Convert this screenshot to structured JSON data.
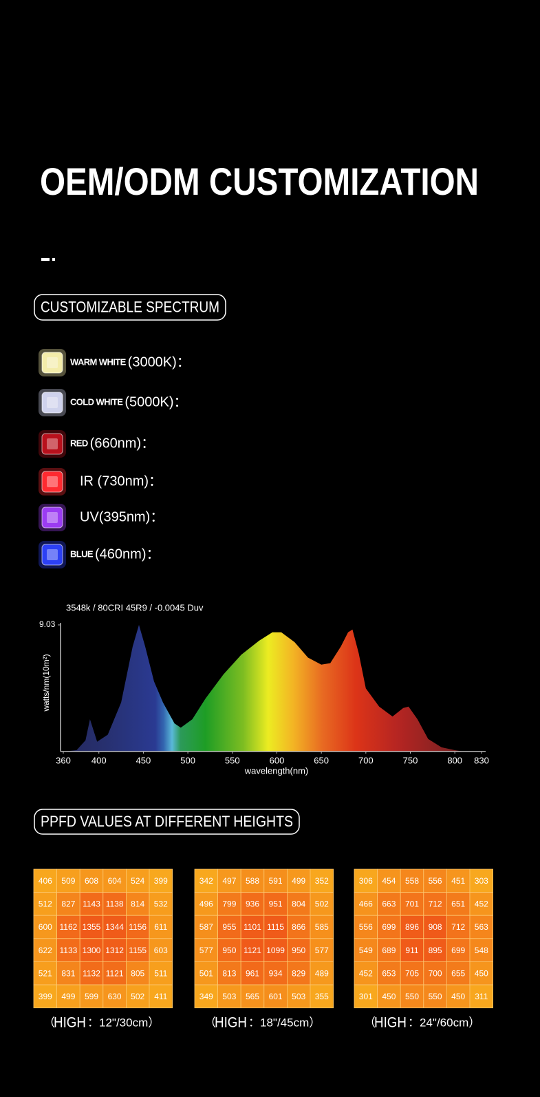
{
  "header": {
    "title": "OEM/ODM CUSTOMIZATION"
  },
  "spectrum_section": {
    "heading": "CUSTOMIZABLE SPECTRUM",
    "items": [
      {
        "name": "WARM WHITE",
        "spec": "(3000K)：",
        "color": "#f3ecaa"
      },
      {
        "name": "COLD WHITE",
        "spec": "(5000K)：",
        "color": "#cfd2ec"
      },
      {
        "name": "RED",
        "spec": "(660nm)：",
        "color": "#b8101c"
      },
      {
        "spec": "IR (730nm)：",
        "color": "#ff2a30"
      },
      {
        "spec": "UV(395nm)：",
        "color": "#9b3cf2"
      },
      {
        "name": "BLUE",
        "spec": "(460nm)：",
        "color": "#2c40f4"
      }
    ]
  },
  "spectrum_chart": {
    "type": "area",
    "title": "3548k / 80CRI 45R9 / -0.0045 Duv",
    "y_label": "watts/nm(10m²)",
    "x_label": "wavelength(nm)",
    "x": [
      360,
      375,
      385,
      390,
      398,
      410,
      425,
      438,
      445,
      452,
      462,
      472,
      485,
      492,
      505,
      520,
      540,
      560,
      580,
      595,
      605,
      620,
      635,
      650,
      660,
      672,
      680,
      685,
      692,
      700,
      715,
      730,
      742,
      748,
      758,
      770,
      785,
      800,
      810
    ],
    "y": [
      0,
      0.1,
      0.8,
      2.3,
      0.7,
      1.2,
      3.5,
      7.5,
      9.03,
      7.5,
      5,
      3.5,
      2.0,
      1.7,
      2.3,
      3.8,
      5.5,
      6.9,
      7.9,
      8.5,
      8.5,
      7.8,
      6.7,
      6.2,
      6.3,
      7.5,
      8.5,
      8.7,
      7,
      4.5,
      3.2,
      2.5,
      3.1,
      3.2,
      2.3,
      0.9,
      0.3,
      0.1,
      0
    ],
    "xlim": [
      360,
      830
    ],
    "ylim": [
      0,
      9.03
    ],
    "xticks": [
      360,
      400,
      450,
      500,
      550,
      600,
      650,
      700,
      750,
      800,
      830
    ],
    "yticks": [
      9.03
    ]
  },
  "ppfd_section": {
    "heading": "PPFD VALUES AT DIFFERENT HEIGHTS",
    "grids": [
      {
        "rows": [
          [
            406,
            509,
            608,
            604,
            524,
            399
          ],
          [
            512,
            827,
            1143,
            1138,
            814,
            532
          ],
          [
            600,
            1162,
            1355,
            1344,
            1156,
            611
          ],
          [
            622,
            1133,
            1300,
            1312,
            1155,
            603
          ],
          [
            521,
            831,
            1132,
            1121,
            805,
            511
          ],
          [
            399,
            499,
            599,
            630,
            502,
            411
          ]
        ],
        "caption": {
          "prefix": "（",
          "label": "HIGH",
          "suffix": "：12\"/30cm）"
        }
      },
      {
        "rows": [
          [
            342,
            497,
            588,
            591,
            499,
            352
          ],
          [
            496,
            799,
            936,
            951,
            804,
            502
          ],
          [
            587,
            955,
            1101,
            1115,
            866,
            585
          ],
          [
            577,
            950,
            1121,
            1099,
            950,
            577
          ],
          [
            501,
            813,
            961,
            934,
            829,
            489
          ],
          [
            349,
            503,
            565,
            601,
            503,
            355
          ]
        ],
        "caption": {
          "prefix": "（",
          "label": "HIGH",
          "suffix": "：18\"/45cm）"
        }
      },
      {
        "rows": [
          [
            306,
            454,
            558,
            556,
            451,
            303
          ],
          [
            466,
            663,
            701,
            712,
            651,
            452
          ],
          [
            556,
            699,
            896,
            908,
            712,
            563
          ],
          [
            549,
            689,
            911,
            895,
            699,
            548
          ],
          [
            452,
            653,
            705,
            700,
            655,
            450
          ],
          [
            301,
            450,
            550,
            550,
            450,
            311
          ]
        ],
        "caption": {
          "prefix": "（",
          "label": "HIGH",
          "suffix": "：24\"/60cm）"
        }
      }
    ]
  }
}
